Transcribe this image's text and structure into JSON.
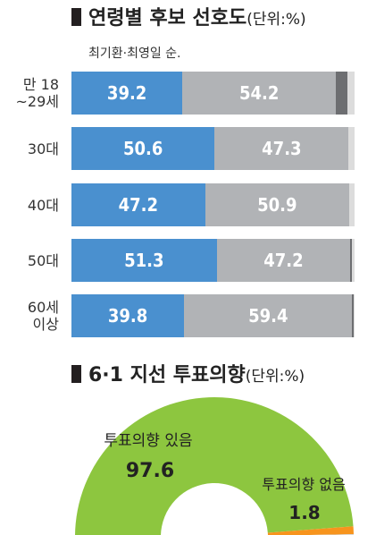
{
  "chart_data": [
    {
      "type": "bar",
      "stacked": true,
      "orientation": "horizontal",
      "title": "연령별 후보 선호도",
      "unit_label": "(단위:%)",
      "legend_note": "최기환·최영일 순.",
      "categories": [
        {
          "lines": [
            "만 18",
            "~29세"
          ]
        },
        {
          "lines": [
            "30대"
          ]
        },
        {
          "lines": [
            "40대"
          ]
        },
        {
          "lines": [
            "50대"
          ]
        },
        {
          "lines": [
            "60세",
            "이상"
          ]
        }
      ],
      "series": [
        {
          "name": "최기환",
          "values": [
            39.2,
            50.6,
            47.2,
            51.3,
            39.8
          ],
          "color": "#4a90cf"
        },
        {
          "name": "최영일",
          "values": [
            54.2,
            47.3,
            50.9,
            47.2,
            59.4
          ],
          "color": "#b1b3b6"
        },
        {
          "values": [
            4.0,
            0.0,
            0.0,
            0.4,
            0.4
          ],
          "color": "#6d6e71"
        },
        {
          "values": [
            2.6,
            2.1,
            1.9,
            1.1,
            0.4
          ],
          "color": "#dcdcdc"
        }
      ]
    },
    {
      "type": "pie",
      "subtype": "semicircle-donut",
      "title": "6·1 지선 투표의향",
      "unit_label": "(단위:%)",
      "slices": [
        {
          "label": "투표의향 있음",
          "value": 97.6,
          "color": "#8dc63f"
        },
        {
          "label": "투표의향 없음",
          "value": 1.8,
          "color": "#f7941d"
        },
        {
          "value": 0.6,
          "color": "#d9d9d9"
        }
      ]
    }
  ]
}
